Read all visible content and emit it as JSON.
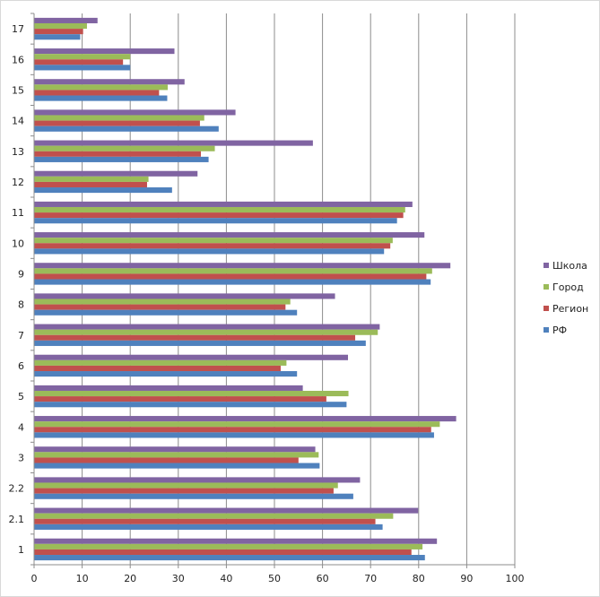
{
  "chart_data": {
    "type": "bar",
    "orientation": "horizontal",
    "categories": [
      "1",
      "2.1",
      "2.2",
      "3",
      "4",
      "5",
      "6",
      "7",
      "8",
      "9",
      "10",
      "11",
      "12",
      "13",
      "14",
      "15",
      "16",
      "17"
    ],
    "series": [
      {
        "name": "РФ",
        "color": "#4f81bd",
        "values": [
          81.3,
          72.5,
          66.4,
          59.4,
          83.2,
          65.0,
          54.7,
          69.0,
          54.7,
          82.5,
          72.8,
          75.5,
          28.7,
          36.3,
          38.4,
          27.7,
          20.0,
          9.6
        ]
      },
      {
        "name": "Регион",
        "color": "#c0504d",
        "values": [
          78.5,
          71.0,
          62.3,
          55.0,
          82.6,
          60.8,
          51.3,
          66.8,
          52.3,
          81.6,
          74.1,
          76.8,
          23.5,
          34.7,
          34.5,
          26.0,
          18.5,
          10.2
        ]
      },
      {
        "name": "Город",
        "color": "#9bbb59",
        "values": [
          80.8,
          74.7,
          63.2,
          59.2,
          84.4,
          65.4,
          52.5,
          71.5,
          53.3,
          82.8,
          74.6,
          77.2,
          23.8,
          37.6,
          35.4,
          27.8,
          20.0,
          11.0
        ]
      },
      {
        "name": "Школа",
        "color": "#8064a2",
        "values": [
          83.8,
          79.9,
          67.8,
          58.5,
          87.8,
          55.9,
          65.3,
          71.9,
          62.6,
          86.6,
          81.2,
          78.7,
          34.0,
          58.0,
          41.9,
          31.3,
          29.2,
          13.2
        ]
      }
    ],
    "legend_order": [
      "Школа",
      "Город",
      "Регион",
      "РФ"
    ],
    "xlim": [
      0,
      100
    ],
    "xticks": [
      "0",
      "10",
      "20",
      "30",
      "40",
      "50",
      "60",
      "70",
      "80",
      "90",
      "100"
    ],
    "title": "",
    "xlabel": "",
    "ylabel": "",
    "grid": "vertical",
    "legend_position": "right"
  }
}
